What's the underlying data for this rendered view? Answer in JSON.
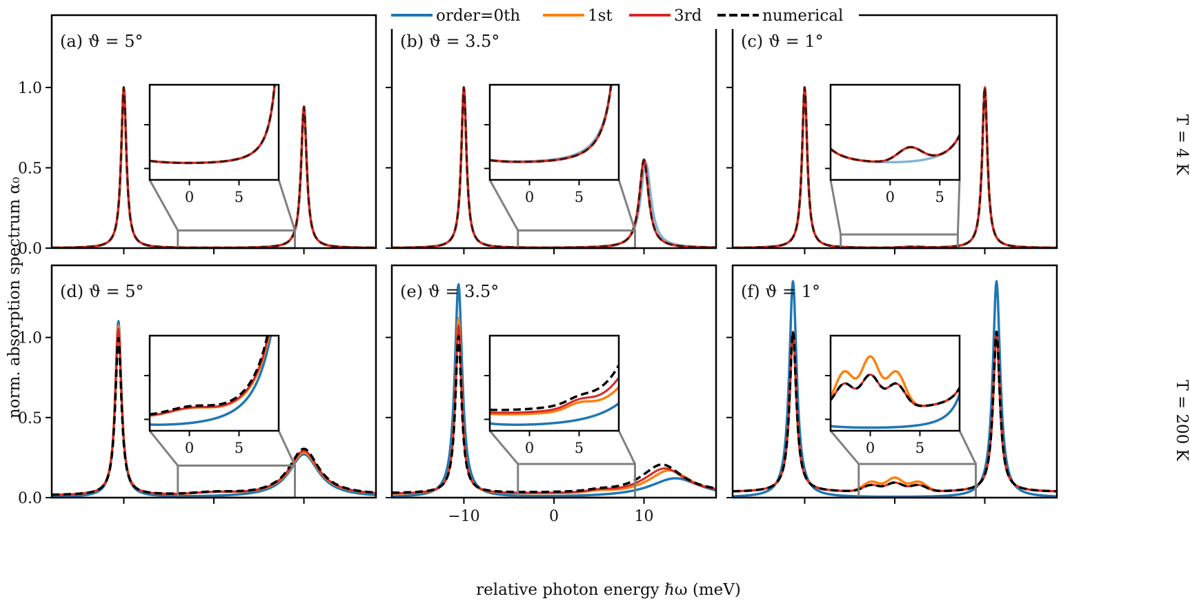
{
  "figure": {
    "xlabel": "relative photon energy ℏω (meV)",
    "ylabel": "norm. absorption spectrum α₀",
    "row_labels": [
      "T = 4 K",
      "T = 200 K"
    ]
  },
  "legend": {
    "entries": [
      {
        "label": "order=0th",
        "color": "#1f77b4",
        "dash": false
      },
      {
        "label": "1st",
        "color": "#ff7f0e",
        "dash": false
      },
      {
        "label": "3rd",
        "color": "#d62728",
        "dash": false
      },
      {
        "label": "numerical",
        "color": "#000000",
        "dash": true
      }
    ]
  },
  "colors": {
    "order0": "#1f77b4",
    "order1": "#ff7f0e",
    "order3": "#d62728",
    "numerical": "#000000",
    "box": "#808080"
  },
  "chart_data": [
    {
      "type": "line",
      "panel": "(a)",
      "title": "(a) ϑ = 5°",
      "xlim": [
        -18,
        18
      ],
      "ylim": [
        0,
        1.45
      ],
      "xticks": [
        -10,
        0,
        10
      ],
      "xticklabels": [],
      "yticks": [
        0.0,
        0.5,
        1.0
      ],
      "yticklabels": [
        "0.0",
        "0.5",
        "1.0"
      ],
      "inset": {
        "xlim": [
          -4,
          9
        ],
        "ylim": [
          -0.01,
          0.06
        ],
        "xticks": [
          0,
          5
        ],
        "xticklabels": [
          "0",
          "5"
        ]
      },
      "series": [
        {
          "name": "order=0th",
          "peaks": [
            {
              "x0": -10.0,
              "amp": 1.0,
              "w": 0.35
            },
            {
              "x0": 10.0,
              "amp": 0.88,
              "w": 0.38
            }
          ],
          "bg": 0.0,
          "bumps": []
        },
        {
          "name": "1st",
          "peaks": [
            {
              "x0": -10.0,
              "amp": 1.0,
              "w": 0.35
            },
            {
              "x0": 10.0,
              "amp": 0.88,
              "w": 0.38
            }
          ],
          "bg": 0.0,
          "bumps": []
        },
        {
          "name": "3rd",
          "peaks": [
            {
              "x0": -10.0,
              "amp": 1.0,
              "w": 0.35
            },
            {
              "x0": 10.0,
              "amp": 0.88,
              "w": 0.38
            }
          ],
          "bg": 0.0,
          "bumps": []
        },
        {
          "name": "numerical",
          "peaks": [
            {
              "x0": -10.0,
              "amp": 1.0,
              "w": 0.35
            },
            {
              "x0": 10.0,
              "amp": 0.88,
              "w": 0.38
            }
          ],
          "bg": 0.0,
          "bumps": []
        }
      ]
    },
    {
      "type": "line",
      "panel": "(b)",
      "title": "(b) ϑ = 3.5°",
      "xlim": [
        -18,
        18
      ],
      "ylim": [
        0,
        1.45
      ],
      "xticks": [
        -10,
        0,
        10
      ],
      "xticklabels": [],
      "yticks": [
        0.0,
        0.5,
        1.0
      ],
      "yticklabels": [],
      "inset": {
        "xlim": [
          -4,
          9
        ],
        "ylim": [
          -0.01,
          0.06
        ],
        "xticks": [
          0,
          5
        ],
        "xticklabels": [
          "0",
          "5"
        ]
      },
      "series": [
        {
          "name": "order=0th",
          "peaks": [
            {
              "x0": -10.0,
              "amp": 1.0,
              "w": 0.35
            },
            {
              "x0": 10.2,
              "amp": 0.53,
              "w": 0.7
            }
          ],
          "bg": 0.0,
          "bumps": []
        },
        {
          "name": "1st",
          "peaks": [
            {
              "x0": -10.0,
              "amp": 1.0,
              "w": 0.35
            },
            {
              "x0": 10.0,
              "amp": 0.55,
              "w": 0.62
            }
          ],
          "bg": 0.0,
          "bumps": []
        },
        {
          "name": "3rd",
          "peaks": [
            {
              "x0": -10.0,
              "amp": 1.0,
              "w": 0.35
            },
            {
              "x0": 10.0,
              "amp": 0.55,
              "w": 0.62
            }
          ],
          "bg": 0.0,
          "bumps": []
        },
        {
          "name": "numerical",
          "peaks": [
            {
              "x0": -10.0,
              "amp": 1.0,
              "w": 0.35
            },
            {
              "x0": 10.0,
              "amp": 0.55,
              "w": 0.62
            }
          ],
          "bg": 0.0,
          "bumps": []
        }
      ]
    },
    {
      "type": "line",
      "panel": "(c)",
      "title": "(c) ϑ = 1°",
      "xlim": [
        -18,
        18
      ],
      "ylim": [
        0,
        1.45
      ],
      "xticks": [
        -10,
        0,
        10
      ],
      "xticklabels": [],
      "yticks": [
        0.0,
        0.5,
        1.0
      ],
      "yticklabels": [],
      "inset": {
        "xlim": [
          -6,
          7
        ],
        "ylim": [
          -0.005,
          0.035
        ],
        "xticks": [
          0,
          5
        ],
        "xticklabels": [
          "0",
          "5"
        ]
      },
      "series": [
        {
          "name": "order=0th",
          "peaks": [
            {
              "x0": -10.0,
              "amp": 1.0,
              "w": 0.35
            },
            {
              "x0": 10.0,
              "amp": 1.0,
              "w": 0.35
            }
          ],
          "bg": 0.0,
          "bumps": []
        },
        {
          "name": "1st",
          "peaks": [
            {
              "x0": -10.0,
              "amp": 1.0,
              "w": 0.35
            },
            {
              "x0": 10.0,
              "amp": 1.0,
              "w": 0.35
            }
          ],
          "bg": 0.0,
          "bumps": [
            {
              "x0": 2.0,
              "amp": 0.006,
              "s": 1.2
            }
          ]
        },
        {
          "name": "3rd",
          "peaks": [
            {
              "x0": -10.0,
              "amp": 1.0,
              "w": 0.35
            },
            {
              "x0": 10.0,
              "amp": 1.0,
              "w": 0.35
            }
          ],
          "bg": 0.0,
          "bumps": [
            {
              "x0": 2.0,
              "amp": 0.006,
              "s": 1.2
            }
          ]
        },
        {
          "name": "numerical",
          "peaks": [
            {
              "x0": -10.0,
              "amp": 1.0,
              "w": 0.35
            },
            {
              "x0": 10.0,
              "amp": 1.0,
              "w": 0.35
            }
          ],
          "bg": 0.0,
          "bumps": [
            {
              "x0": 2.0,
              "amp": 0.006,
              "s": 1.2
            }
          ]
        }
      ]
    },
    {
      "type": "line",
      "panel": "(d)",
      "title": "(d) ϑ = 5°",
      "xlim": [
        -18,
        18
      ],
      "ylim": [
        0,
        1.45
      ],
      "xticks": [
        -10,
        0,
        10
      ],
      "xticklabels": [],
      "yticks": [
        0.0,
        0.5,
        1.0
      ],
      "yticklabels": [
        "0.0",
        "0.5",
        "1.0"
      ],
      "inset": {
        "xlim": [
          -4,
          9
        ],
        "ylim": [
          0.0,
          0.15
        ],
        "xticks": [
          0,
          5
        ],
        "xticklabels": [
          "0",
          "5"
        ]
      },
      "series": [
        {
          "name": "order=0th",
          "peaks": [
            {
              "x0": -10.6,
              "amp": 1.1,
              "w": 0.42
            },
            {
              "x0": 10.0,
              "amp": 0.27,
              "w": 2.0
            }
          ],
          "bg": 0.0,
          "bumps": []
        },
        {
          "name": "1st",
          "peaks": [
            {
              "x0": -10.6,
              "amp": 1.06,
              "w": 0.42
            },
            {
              "x0": 10.0,
              "amp": 0.27,
              "w": 2.0
            }
          ],
          "bg": 0.012,
          "bumps": [
            {
              "x0": 0.0,
              "amp": 0.012,
              "s": 2.2
            }
          ]
        },
        {
          "name": "3rd",
          "peaks": [
            {
              "x0": -10.6,
              "amp": 1.04,
              "w": 0.42
            },
            {
              "x0": 10.0,
              "amp": 0.28,
              "w": 2.0
            }
          ],
          "bg": 0.012,
          "bumps": [
            {
              "x0": 0.0,
              "amp": 0.012,
              "s": 2.2
            }
          ]
        },
        {
          "name": "numerical",
          "peaks": [
            {
              "x0": -10.6,
              "amp": 0.98,
              "w": 0.42
            },
            {
              "x0": 10.0,
              "amp": 0.29,
              "w": 2.0
            }
          ],
          "bg": 0.014,
          "bumps": [
            {
              "x0": 0.0,
              "amp": 0.012,
              "s": 2.2
            }
          ]
        }
      ]
    },
    {
      "type": "line",
      "panel": "(e)",
      "title": "(e) ϑ = 3.5°",
      "xlim": [
        -18,
        18
      ],
      "ylim": [
        0,
        1.45
      ],
      "xticks": [
        -10,
        0,
        10
      ],
      "xticklabels": [
        "−10",
        "0",
        "10"
      ],
      "yticks": [
        0.0,
        0.5,
        1.0
      ],
      "yticklabels": [],
      "inset": {
        "xlim": [
          -4,
          9
        ],
        "ylim": [
          0.0,
          0.16
        ],
        "xticks": [
          0,
          5
        ],
        "xticklabels": [
          "0",
          "5"
        ]
      },
      "series": [
        {
          "name": "order=0th",
          "peaks": [
            {
              "x0": -10.6,
              "amp": 1.33,
              "w": 0.5
            },
            {
              "x0": 13.5,
              "amp": 0.12,
              "w": 3.5
            }
          ],
          "bg": 0.0,
          "bumps": []
        },
        {
          "name": "1st",
          "peaks": [
            {
              "x0": -10.6,
              "amp": 1.1,
              "w": 0.42
            },
            {
              "x0": 12.8,
              "amp": 0.15,
              "w": 2.8
            }
          ],
          "bg": 0.02,
          "bumps": [
            {
              "x0": 5.0,
              "amp": 0.01,
              "s": 1.2
            }
          ]
        },
        {
          "name": "3rd",
          "peaks": [
            {
              "x0": -10.6,
              "amp": 1.05,
              "w": 0.42
            },
            {
              "x0": 12.3,
              "amp": 0.16,
              "w": 2.8
            }
          ],
          "bg": 0.022,
          "bumps": [
            {
              "x0": 5.0,
              "amp": 0.01,
              "s": 1.2
            }
          ]
        },
        {
          "name": "numerical",
          "peaks": [
            {
              "x0": -10.6,
              "amp": 0.98,
              "w": 0.42
            },
            {
              "x0": 12.0,
              "amp": 0.18,
              "w": 2.8
            }
          ],
          "bg": 0.026,
          "bumps": [
            {
              "x0": 5.0,
              "amp": 0.008,
              "s": 1.2
            }
          ]
        }
      ]
    },
    {
      "type": "line",
      "panel": "(f)",
      "title": "(f) ϑ = 1°",
      "xlim": [
        -18,
        18
      ],
      "ylim": [
        0,
        1.45
      ],
      "xticks": [
        -10,
        0,
        10
      ],
      "xticklabels": [],
      "yticks": [
        0.0,
        0.5,
        1.0
      ],
      "yticklabels": [],
      "inset": {
        "xlim": [
          -4,
          9
        ],
        "ylim": [
          0.0,
          0.16
        ],
        "xticks": [
          0,
          5
        ],
        "xticklabels": [
          "0",
          "5"
        ]
      },
      "series": [
        {
          "name": "order=0th",
          "peaks": [
            {
              "x0": -11.3,
              "amp": 1.35,
              "w": 0.5
            },
            {
              "x0": 11.3,
              "amp": 1.35,
              "w": 0.5
            }
          ],
          "bg": 0.0,
          "bumps": []
        },
        {
          "name": "1st",
          "peaks": [
            {
              "x0": -11.3,
              "amp": 1.0,
              "w": 0.45
            },
            {
              "x0": 11.3,
              "amp": 1.0,
              "w": 0.45
            }
          ],
          "bg": 0.035,
          "bumps": [
            {
              "x0": -2.6,
              "amp": 0.06,
              "s": 0.9
            },
            {
              "x0": 0.0,
              "amp": 0.085,
              "s": 0.9
            },
            {
              "x0": 2.6,
              "amp": 0.06,
              "s": 0.9
            }
          ]
        },
        {
          "name": "3rd",
          "peaks": [
            {
              "x0": -11.3,
              "amp": 1.0,
              "w": 0.45
            },
            {
              "x0": 11.3,
              "amp": 1.0,
              "w": 0.45
            }
          ],
          "bg": 0.035,
          "bumps": [
            {
              "x0": -2.6,
              "amp": 0.04,
              "s": 0.9
            },
            {
              "x0": 0.0,
              "amp": 0.055,
              "s": 0.9
            },
            {
              "x0": 2.6,
              "amp": 0.04,
              "s": 0.9
            }
          ]
        },
        {
          "name": "numerical",
          "peaks": [
            {
              "x0": -11.3,
              "amp": 1.0,
              "w": 0.45
            },
            {
              "x0": 11.3,
              "amp": 1.0,
              "w": 0.45
            }
          ],
          "bg": 0.035,
          "bumps": [
            {
              "x0": -2.6,
              "amp": 0.04,
              "s": 0.9
            },
            {
              "x0": 0.0,
              "amp": 0.055,
              "s": 0.9
            },
            {
              "x0": 2.6,
              "amp": 0.04,
              "s": 0.9
            }
          ]
        }
      ]
    }
  ]
}
